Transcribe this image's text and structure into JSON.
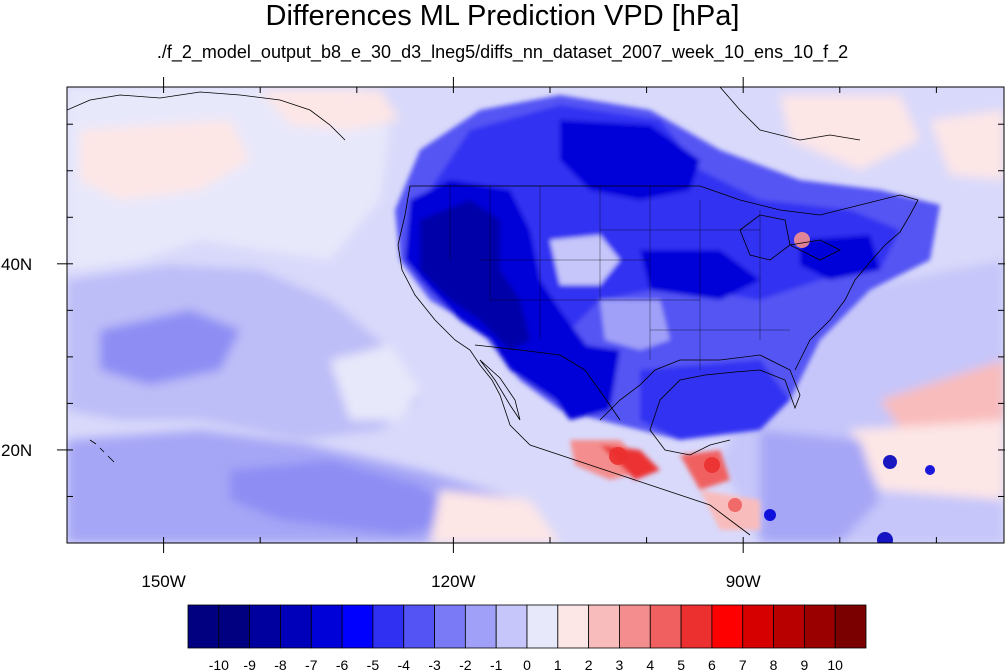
{
  "title": "Differences ML Prediction VPD [hPa]",
  "subtitle": "./f_2_model_output_b8_e_30_d3_lneg5/diffs_nn_dataset_2007_week_10_ens_10_f_2",
  "map": {
    "lon_range": [
      -160,
      -63
    ],
    "lat_range": [
      10,
      59
    ],
    "lat_ticks": [
      {
        "value": 40,
        "label": "40N"
      },
      {
        "value": 20,
        "label": "20N"
      }
    ],
    "lon_ticks": [
      {
        "value": -150,
        "label": "150W"
      },
      {
        "value": -120,
        "label": "120W"
      },
      {
        "value": -90,
        "label": "90W"
      }
    ]
  },
  "colorbar": {
    "labels": [
      "-10",
      "-9",
      "-8",
      "-7",
      "-6",
      "-5",
      "-4",
      "-3",
      "-2",
      "-1",
      "0",
      "1",
      "2",
      "3",
      "4",
      "5",
      "6",
      "7",
      "8",
      "9",
      "10"
    ],
    "colors": [
      "#000080",
      "#00009e",
      "#0000bb",
      "#0000d9",
      "#0000ff",
      "#3030f2",
      "#5454f4",
      "#7a7af6",
      "#a0a0f8",
      "#c6c6fa",
      "#e8e8fb",
      "#fde6e6",
      "#f9bcbc",
      "#f48e8e",
      "#f06060",
      "#ec3030",
      "#ff0000",
      "#d60000",
      "#b80000",
      "#9a0000",
      "#7a0000"
    ]
  }
}
